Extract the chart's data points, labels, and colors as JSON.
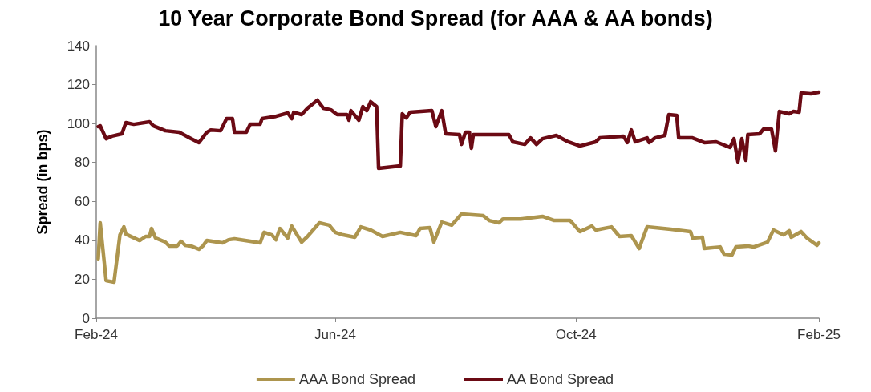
{
  "chart_data": {
    "type": "line",
    "title": "10 Year Corporate Bond Spread (for AAA & AA bonds)",
    "ylabel": "Spread (in bps)",
    "xlim": [
      "2024-02-01",
      "2025-02-01"
    ],
    "xticks": [
      {
        "value": "2024-02-01",
        "label": "Feb-24"
      },
      {
        "value": "2024-06-01",
        "label": "Jun-24"
      },
      {
        "value": "2024-10-01",
        "label": "Oct-24"
      },
      {
        "value": "2025-02-01",
        "label": "Feb-25"
      }
    ],
    "ylim": [
      0,
      140
    ],
    "yticks": [
      0,
      20,
      40,
      60,
      80,
      100,
      120,
      140
    ],
    "grid": false,
    "legend": "bottom",
    "marker": "none",
    "line_style": "solid",
    "series": [
      {
        "name": "AAA Bond Spread",
        "color": "#ad954e",
        "x": [
          "2024-02-02",
          "2024-02-03",
          "2024-02-06",
          "2024-02-10",
          "2024-02-13",
          "2024-02-15",
          "2024-02-16",
          "2024-02-23",
          "2024-02-26",
          "2024-02-28",
          "2024-02-29",
          "2024-03-02",
          "2024-03-07",
          "2024-03-09",
          "2024-03-13",
          "2024-03-15",
          "2024-03-17",
          "2024-03-20",
          "2024-03-24",
          "2024-03-26",
          "2024-03-28",
          "2024-04-05",
          "2024-04-08",
          "2024-04-11",
          "2024-04-19",
          "2024-04-24",
          "2024-04-26",
          "2024-04-30",
          "2024-05-02",
          "2024-05-04",
          "2024-05-08",
          "2024-05-10",
          "2024-05-15",
          "2024-05-18",
          "2024-05-24",
          "2024-05-29",
          "2024-06-01",
          "2024-06-05",
          "2024-06-11",
          "2024-06-14",
          "2024-06-19",
          "2024-06-25",
          "2024-07-04",
          "2024-07-12",
          "2024-07-14",
          "2024-07-19",
          "2024-07-21",
          "2024-07-25",
          "2024-07-30",
          "2024-08-04",
          "2024-08-15",
          "2024-08-18",
          "2024-08-23",
          "2024-08-25",
          "2024-09-03",
          "2024-09-14",
          "2024-09-20",
          "2024-09-28",
          "2024-10-03",
          "2024-10-09",
          "2024-10-11",
          "2024-10-19",
          "2024-10-23",
          "2024-10-29",
          "2024-11-02",
          "2024-11-03",
          "2024-11-06",
          "2024-11-18",
          "2024-11-28",
          "2024-11-29",
          "2024-12-04",
          "2024-12-05",
          "2024-12-13",
          "2024-12-15",
          "2024-12-19",
          "2024-12-21",
          "2024-12-27",
          "2024-12-30",
          "2025-01-06",
          "2025-01-09",
          "2025-01-14",
          "2025-01-17",
          "2025-01-18",
          "2025-01-23",
          "2025-01-26",
          "2025-01-31",
          "2025-02-01"
        ],
        "values": [
          30.5,
          49.0,
          19.3,
          18.5,
          42.8,
          46.9,
          43.2,
          39.9,
          42.0,
          42.0,
          46.1,
          41.2,
          39.1,
          37.1,
          37.1,
          39.5,
          37.5,
          37.1,
          35.4,
          37.1,
          39.9,
          38.7,
          40.3,
          40.8,
          39.5,
          38.7,
          44.1,
          42.8,
          40.3,
          46.1,
          41.2,
          47.3,
          39.1,
          42.0,
          49.0,
          47.8,
          44.1,
          42.8,
          41.6,
          46.9,
          45.3,
          42.0,
          44.1,
          42.4,
          46.1,
          46.5,
          39.1,
          49.4,
          47.8,
          53.5,
          52.7,
          50.2,
          49.0,
          51.0,
          51.0,
          52.3,
          50.2,
          50.2,
          44.5,
          47.3,
          45.3,
          46.9,
          42.0,
          42.4,
          35.8,
          38.7,
          46.9,
          45.7,
          44.5,
          41.2,
          41.6,
          35.8,
          36.6,
          32.9,
          32.5,
          36.6,
          37.1,
          36.6,
          39.1,
          45.3,
          42.8,
          44.9,
          41.6,
          44.5,
          41.2,
          37.5,
          38.7
        ]
      },
      {
        "name": "AA Bond Spread",
        "color": "#6b0a14",
        "x": [
          "2024-02-02",
          "2024-02-03",
          "2024-02-06",
          "2024-02-09",
          "2024-02-14",
          "2024-02-16",
          "2024-02-20",
          "2024-02-28",
          "2024-03-01",
          "2024-03-07",
          "2024-03-14",
          "2024-03-20",
          "2024-03-24",
          "2024-03-28",
          "2024-03-30",
          "2024-04-04",
          "2024-04-07",
          "2024-04-10",
          "2024-04-11",
          "2024-04-17",
          "2024-04-19",
          "2024-04-24",
          "2024-04-25",
          "2024-05-02",
          "2024-05-08",
          "2024-05-10",
          "2024-05-11",
          "2024-05-15",
          "2024-05-18",
          "2024-05-23",
          "2024-05-26",
          "2024-05-30",
          "2024-06-02",
          "2024-06-07",
          "2024-06-08",
          "2024-06-09",
          "2024-06-13",
          "2024-06-15",
          "2024-06-17",
          "2024-06-19",
          "2024-06-22",
          "2024-06-23",
          "2024-07-04",
          "2024-07-05",
          "2024-07-07",
          "2024-07-09",
          "2024-07-20",
          "2024-07-22",
          "2024-07-25",
          "2024-07-27",
          "2024-08-03",
          "2024-08-04",
          "2024-08-06",
          "2024-08-08",
          "2024-08-09",
          "2024-08-10",
          "2024-08-28",
          "2024-08-30",
          "2024-09-05",
          "2024-09-08",
          "2024-09-11",
          "2024-09-14",
          "2024-09-21",
          "2024-09-27",
          "2024-10-03",
          "2024-10-11",
          "2024-10-13",
          "2024-10-25",
          "2024-10-27",
          "2024-10-29",
          "2024-10-31",
          "2024-11-06",
          "2024-11-07",
          "2024-11-10",
          "2024-11-15",
          "2024-11-17",
          "2024-11-21",
          "2024-11-22",
          "2024-11-29",
          "2024-12-05",
          "2024-12-11",
          "2024-12-18",
          "2024-12-20",
          "2024-12-22",
          "2024-12-24",
          "2024-12-26",
          "2024-12-27",
          "2025-01-02",
          "2025-01-04",
          "2025-01-08",
          "2025-01-10",
          "2025-01-12",
          "2025-01-17",
          "2025-01-19",
          "2025-01-22",
          "2025-01-23",
          "2025-01-28",
          "2025-02-01"
        ],
        "values": [
          98.4,
          98.8,
          92.2,
          93.5,
          94.7,
          100.5,
          99.6,
          100.9,
          98.8,
          96.3,
          95.5,
          92.2,
          90.2,
          95.5,
          96.7,
          96.3,
          102.5,
          102.5,
          95.5,
          95.5,
          99.6,
          99.6,
          102.5,
          103.7,
          105.4,
          102.5,
          105.8,
          104.6,
          107.9,
          112.0,
          107.9,
          107.0,
          104.6,
          104.6,
          101.7,
          106.6,
          101.7,
          108.7,
          106.6,
          111.2,
          108.7,
          77.0,
          78.2,
          105.0,
          102.9,
          105.8,
          106.6,
          98.4,
          106.6,
          94.7,
          94.3,
          89.3,
          95.5,
          95.5,
          87.3,
          94.3,
          94.3,
          90.6,
          89.3,
          92.6,
          89.3,
          92.2,
          93.9,
          90.6,
          88.5,
          90.6,
          92.6,
          93.5,
          90.2,
          96.7,
          90.6,
          92.6,
          90.2,
          92.6,
          93.9,
          104.6,
          104.2,
          92.6,
          92.6,
          90.2,
          90.6,
          87.7,
          92.2,
          80.3,
          92.2,
          81.1,
          94.3,
          94.7,
          97.2,
          97.2,
          86.0,
          106.2,
          105.0,
          106.2,
          105.8,
          115.7,
          115.3,
          116.1
        ]
      }
    ]
  }
}
